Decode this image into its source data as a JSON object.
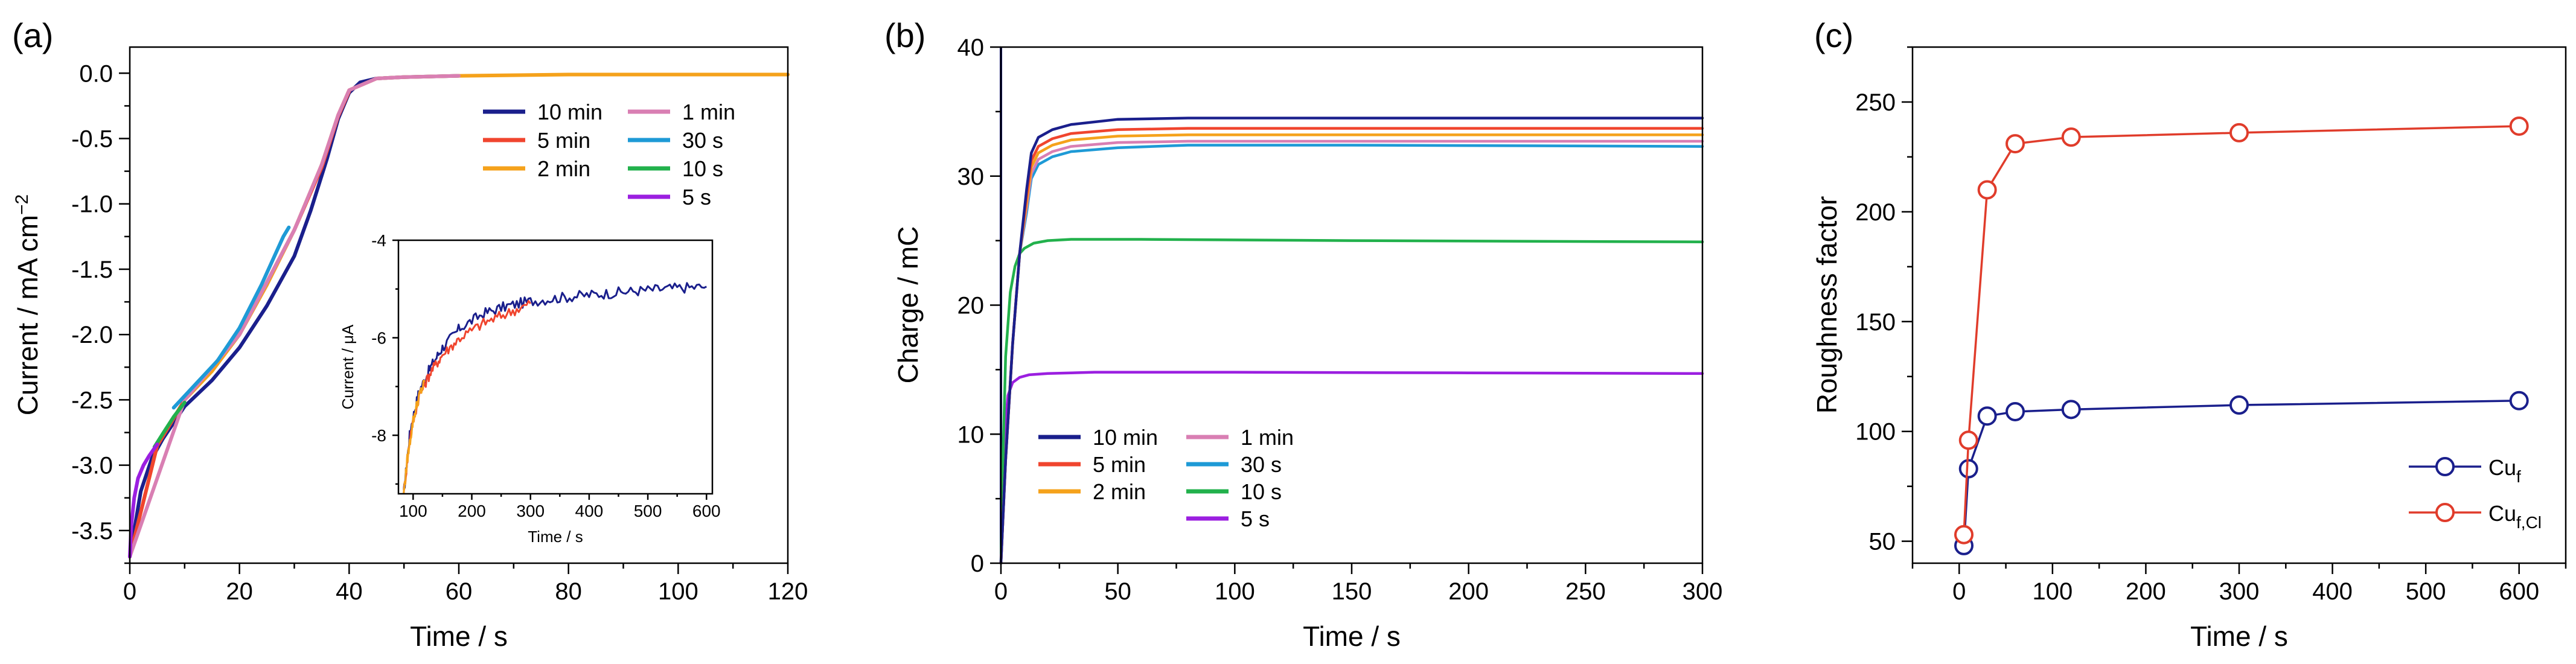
{
  "chart_data": [
    {
      "panel": "(a)",
      "type": "line",
      "xlabel": "Time / s",
      "ylabel_main": "Current / mA cm",
      "ylabel_sup": "−2",
      "xlim": [
        0,
        120
      ],
      "ylim": [
        -3.75,
        0.2
      ],
      "xticks": [
        "0",
        "20",
        "40",
        "60",
        "80",
        "100",
        "120"
      ],
      "yticks": [
        "0.0",
        "-0.5",
        "-1.0",
        "-1.5",
        "-2.0",
        "-2.5",
        "-3.0",
        "-3.5"
      ],
      "legend": [
        {
          "label": "10 min",
          "color": "#1a1f8c"
        },
        {
          "label": "5 min",
          "color": "#f0452e"
        },
        {
          "label": "2 min",
          "color": "#f5a21b"
        },
        {
          "label": "1 min",
          "color": "#d97fb3"
        },
        {
          "label": "30 s",
          "color": "#1e9ad6"
        },
        {
          "label": "10 s",
          "color": "#22b14c"
        },
        {
          "label": "5 s",
          "color": "#9b1fe0"
        }
      ],
      "series": [
        {
          "name": "10 min",
          "color": "#1a1f8c",
          "x": [
            0,
            2,
            4,
            6,
            10,
            15,
            20,
            25,
            30,
            33,
            36,
            38,
            40,
            42,
            45,
            50,
            60
          ],
          "y": [
            -3.7,
            -3.2,
            -2.95,
            -2.8,
            -2.55,
            -2.35,
            -2.1,
            -1.78,
            -1.4,
            -1.05,
            -0.65,
            -0.35,
            -0.15,
            -0.07,
            -0.04,
            -0.03,
            -0.02
          ]
        },
        {
          "name": "2 min",
          "color": "#f5a21b",
          "x": [
            0,
            5,
            10,
            15,
            20,
            25,
            30,
            35,
            38,
            40,
            45,
            50,
            60,
            80,
            100,
            120
          ],
          "y": [
            -3.7,
            -2.85,
            -2.5,
            -2.28,
            -2.0,
            -1.62,
            -1.2,
            -0.7,
            -0.32,
            -0.13,
            -0.04,
            -0.03,
            -0.02,
            -0.01,
            -0.01,
            -0.01
          ]
        },
        {
          "name": "5 min",
          "color": "#f0452e",
          "x": [
            0,
            5,
            10,
            20,
            30,
            35,
            38,
            40
          ],
          "y": [
            -3.7,
            -2.85,
            -2.5,
            -2.0,
            -1.2,
            -0.72,
            -0.33,
            -0.14
          ]
        },
        {
          "name": "1 min",
          "color": "#d97fb3",
          "x": [
            0,
            10,
            20,
            30,
            35,
            38,
            40,
            45,
            50,
            60
          ],
          "y": [
            -3.7,
            -2.5,
            -2.0,
            -1.2,
            -0.7,
            -0.32,
            -0.13,
            -0.04,
            -0.03,
            -0.02
          ]
        },
        {
          "name": "30 s",
          "color": "#1e9ad6",
          "x": [
            8,
            12,
            16,
            20,
            24,
            28,
            29
          ],
          "y": [
            -2.56,
            -2.38,
            -2.2,
            -1.95,
            -1.62,
            -1.25,
            -1.18
          ]
        },
        {
          "name": "10 s",
          "color": "#22b14c",
          "x": [
            4.5,
            6,
            8,
            10
          ],
          "y": [
            -2.86,
            -2.76,
            -2.63,
            -2.52
          ]
        },
        {
          "name": "5 s",
          "color": "#9b1fe0",
          "x": [
            0,
            0.3,
            0.8,
            1.5,
            2.5,
            3.5,
            4.5,
            5
          ],
          "y": [
            -3.7,
            -3.45,
            -3.25,
            -3.1,
            -3.0,
            -2.93,
            -2.87,
            -2.84
          ]
        }
      ],
      "inset": {
        "xlabel": "Time / s",
        "ylabel": "Current / μA",
        "xlim": [
          75,
          610
        ],
        "ylim": [
          -9.2,
          -4.0
        ],
        "xticks": [
          "100",
          "200",
          "300",
          "400",
          "500",
          "600"
        ],
        "yticks": [
          "-4",
          "-6",
          "-8"
        ],
        "series": [
          {
            "name": "10 min",
            "color": "#1a1f8c",
            "x": [
              84,
              95,
              110,
              130,
              150,
              180,
              220,
              260,
              300,
              350,
              400,
              450,
              500,
              550,
              600
            ],
            "y": [
              -9.2,
              -7.9,
              -7.1,
              -6.6,
              -6.2,
              -5.8,
              -5.5,
              -5.35,
              -5.25,
              -5.18,
              -5.12,
              -5.07,
              -5.02,
              -4.98,
              -4.95
            ]
          },
          {
            "name": "5 min",
            "color": "#f0452e",
            "x": [
              84,
              95,
              110,
              130,
              150,
              180,
              220,
              260,
              300
            ],
            "y": [
              -9.2,
              -8.0,
              -7.2,
              -6.7,
              -6.35,
              -6.0,
              -5.7,
              -5.5,
              -5.3
            ]
          },
          {
            "name": "2 min",
            "color": "#f5a21b",
            "x": [
              84,
              90,
              100,
              110,
              120
            ],
            "y": [
              -9.2,
              -8.5,
              -7.7,
              -7.2,
              -6.9
            ]
          }
        ]
      }
    },
    {
      "panel": "(b)",
      "type": "line",
      "xlabel": "Time / s",
      "ylabel": "Charge / mC",
      "xlim": [
        0,
        300
      ],
      "ylim": [
        0,
        40
      ],
      "xticks": [
        "0",
        "50",
        "100",
        "150",
        "200",
        "250",
        "300"
      ],
      "yticks": [
        "0",
        "10",
        "20",
        "30",
        "40"
      ],
      "legend": [
        {
          "label": "10 min",
          "color": "#1a1f8c"
        },
        {
          "label": "5 min",
          "color": "#f0452e"
        },
        {
          "label": "2 min",
          "color": "#f5a21b"
        },
        {
          "label": "1 min",
          "color": "#d97fb3"
        },
        {
          "label": "30 s",
          "color": "#1e9ad6"
        },
        {
          "label": "10 s",
          "color": "#22b14c"
        },
        {
          "label": "5 s",
          "color": "#9b1fe0"
        }
      ],
      "series": [
        {
          "name": "10 min",
          "color": "#1a1f8c",
          "x": [
            0,
            2,
            5,
            8,
            11,
            13,
            16,
            22,
            30,
            50,
            80,
            150,
            300
          ],
          "y": [
            0,
            8,
            17,
            24,
            29,
            31.8,
            33.0,
            33.6,
            34.0,
            34.4,
            34.5,
            34.5,
            34.5
          ]
        },
        {
          "name": "5 min",
          "color": "#f0452e",
          "x": [
            0,
            2,
            5,
            8,
            11,
            13,
            16,
            22,
            30,
            50,
            80,
            150,
            300
          ],
          "y": [
            0,
            8,
            17,
            24,
            28.5,
            31.2,
            32.3,
            32.9,
            33.3,
            33.6,
            33.7,
            33.7,
            33.7
          ]
        },
        {
          "name": "2 min",
          "color": "#f5a21b",
          "x": [
            0,
            2,
            5,
            8,
            11,
            13,
            16,
            22,
            30,
            50,
            80,
            150,
            300
          ],
          "y": [
            0,
            8,
            17,
            24,
            28,
            30.7,
            31.8,
            32.4,
            32.8,
            33.1,
            33.2,
            33.2,
            33.2
          ]
        },
        {
          "name": "1 min",
          "color": "#d97fb3",
          "x": [
            0,
            2,
            5,
            8,
            11,
            13,
            16,
            22,
            30,
            50,
            80,
            150,
            300
          ],
          "y": [
            0,
            8,
            17,
            24,
            27.6,
            30.2,
            31.3,
            31.9,
            32.3,
            32.6,
            32.7,
            32.7,
            32.7
          ]
        },
        {
          "name": "30 s",
          "color": "#1e9ad6",
          "x": [
            0,
            2,
            5,
            8,
            11,
            13,
            16,
            22,
            30,
            50,
            80,
            150,
            300
          ],
          "y": [
            0,
            8,
            17,
            24,
            27.2,
            29.8,
            30.9,
            31.5,
            31.9,
            32.2,
            32.4,
            32.4,
            32.3
          ]
        },
        {
          "name": "10 s",
          "color": "#22b14c",
          "x": [
            0,
            1,
            2,
            4,
            6,
            8,
            10,
            14,
            20,
            30,
            60,
            150,
            300
          ],
          "y": [
            0,
            9,
            16,
            21,
            23,
            24,
            24.4,
            24.8,
            25.0,
            25.1,
            25.1,
            25.0,
            24.9
          ]
        },
        {
          "name": "5 s",
          "color": "#9b1fe0",
          "x": [
            0,
            1,
            2,
            3,
            5,
            8,
            12,
            20,
            40,
            100,
            200,
            300
          ],
          "y": [
            0,
            6,
            11,
            13,
            14.0,
            14.4,
            14.6,
            14.7,
            14.8,
            14.8,
            14.75,
            14.7
          ]
        }
      ]
    },
    {
      "panel": "(c)",
      "type": "line-scatter",
      "xlabel": "Time / s",
      "ylabel": "Roughness factor",
      "xlim": [
        -50,
        650
      ],
      "ylim": [
        40,
        275
      ],
      "xticks": [
        "0",
        "100",
        "200",
        "300",
        "400",
        "500",
        "600"
      ],
      "yticks": [
        "50",
        "100",
        "150",
        "200",
        "250"
      ],
      "legend_position": "bottom-right",
      "series": [
        {
          "name": "Cu",
          "subscript": "f",
          "color": "#1a1f8c",
          "x": [
            5,
            10,
            30,
            60,
            120,
            300,
            600
          ],
          "y": [
            48,
            83,
            107,
            109,
            110,
            112,
            114
          ]
        },
        {
          "name": "Cu",
          "subscript": "f,Cl",
          "color": "#e03c2b",
          "x": [
            5,
            10,
            30,
            60,
            120,
            300,
            600
          ],
          "y": [
            53,
            96,
            210,
            231,
            234,
            236,
            239
          ]
        }
      ]
    }
  ]
}
